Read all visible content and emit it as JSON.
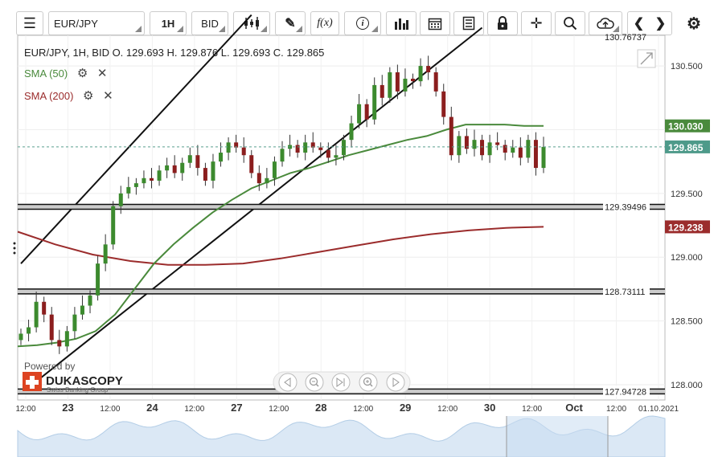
{
  "toolbar": {
    "symbol": "EUR/JPY",
    "period": "1H",
    "price_type": "BID",
    "fx_label": "f(x)",
    "info_label": "i"
  },
  "header": {
    "ohlc_line": "EUR/JPY, 1H, BID     O. 129.693  H. 129.876  L. 129.693  C. 129.865"
  },
  "indicators": [
    {
      "label": "SMA (50)",
      "color": "#4a8a3c"
    },
    {
      "label": "SMA (200)",
      "color": "#9b2c2c"
    }
  ],
  "badges": {
    "sma50": "130.030",
    "last": "129.865",
    "sma200": "129.238"
  },
  "hlines": [
    {
      "value": 129.39496,
      "label": "129.39496"
    },
    {
      "value": 128.73111,
      "label": "128.73111"
    },
    {
      "value": 127.94728,
      "label": "127.94728"
    }
  ],
  "top_partial_label": "130.76737",
  "watermark": {
    "powered": "Powered by",
    "brand": "DUKASCOPY",
    "sub": "Swiss Banking Group"
  },
  "chart_data": {
    "type": "candlestick",
    "title": "EUR/JPY, 1H, BID",
    "ylim": [
      127.88,
      130.74
    ],
    "y_ticks": [
      128.0,
      128.5,
      129.0,
      129.5,
      130.0,
      130.5
    ],
    "y_tick_labels": [
      "128.000",
      "128.500",
      "129.000",
      "129.500",
      "",
      "130.500"
    ],
    "x_tick_labels": [
      "12:00",
      "23",
      "12:00",
      "24",
      "12:00",
      "27",
      "12:00",
      "28",
      "12:00",
      "29",
      "12:00",
      "30",
      "12:00",
      "Oct",
      "12:00",
      "01.10.2021"
    ],
    "close_series": [
      128.4,
      128.45,
      128.65,
      128.55,
      128.35,
      128.3,
      128.42,
      128.55,
      128.62,
      128.7,
      128.95,
      129.1,
      129.4,
      129.5,
      129.55,
      129.58,
      129.62,
      129.6,
      129.68,
      129.72,
      129.66,
      129.74,
      129.8,
      129.7,
      129.6,
      129.75,
      129.82,
      129.9,
      129.86,
      129.8,
      129.66,
      129.58,
      129.62,
      129.75,
      129.85,
      129.88,
      129.82,
      129.9,
      129.86,
      129.84,
      129.78,
      129.8,
      129.92,
      130.05,
      130.2,
      130.08,
      130.35,
      130.25,
      130.45,
      130.3,
      130.4,
      130.38,
      130.5,
      130.45,
      130.3,
      130.1,
      129.8,
      129.95,
      129.85,
      129.92,
      129.8,
      129.9,
      129.88,
      129.82,
      129.86,
      129.78,
      129.92,
      129.7,
      129.865
    ],
    "sma50": [
      128.3,
      128.31,
      128.33,
      128.36,
      128.42,
      128.55,
      128.75,
      128.95,
      129.1,
      129.23,
      129.35,
      129.45,
      129.54,
      129.6,
      129.66,
      129.7,
      129.75,
      129.8,
      129.84,
      129.88,
      129.92,
      129.95,
      130.0,
      130.04,
      130.04,
      130.04,
      130.03,
      130.03
    ],
    "sma200": [
      129.2,
      129.1,
      129.02,
      128.97,
      128.94,
      128.94,
      128.95,
      128.99,
      129.04,
      129.09,
      129.14,
      129.18,
      129.21,
      129.23,
      129.238
    ],
    "channel_lines": [
      {
        "from": [
          0,
          128.95
        ],
        "to": [
          30,
          130.9
        ]
      },
      {
        "from": [
          0,
          127.93
        ],
        "to": [
          60,
          130.8
        ]
      }
    ]
  }
}
